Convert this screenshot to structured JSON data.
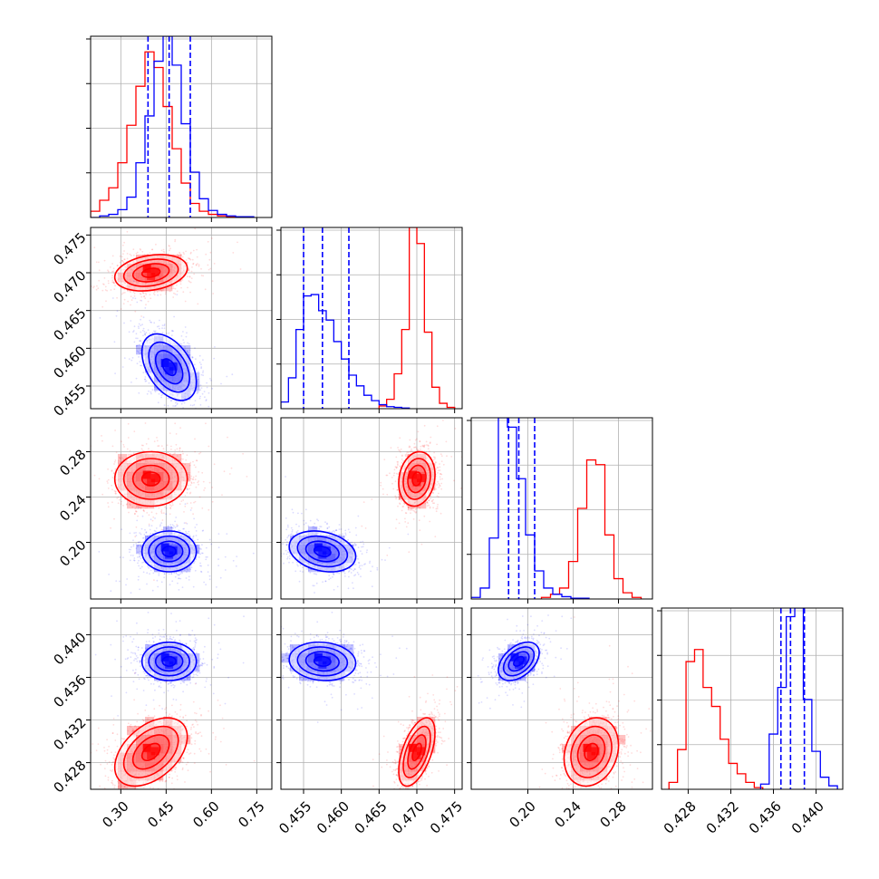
{
  "colors": {
    "series_a": "#ff0000",
    "series_b": "#0000ff"
  },
  "chart_data": {
    "type": "corner",
    "grid": true,
    "dims": [
      {
        "range": [
          0.2,
          0.8
        ],
        "ticks": [
          0.3,
          0.45,
          0.6,
          0.75
        ],
        "tick_labels": [
          "0.30",
          "0.45",
          "0.60",
          "0.75"
        ]
      },
      {
        "range": [
          0.452,
          0.476
        ],
        "ticks": [
          0.455,
          0.46,
          0.465,
          0.47,
          0.475
        ],
        "tick_labels": [
          "0.455",
          "0.460",
          "0.465",
          "0.470",
          "0.475"
        ]
      },
      {
        "range": [
          0.15,
          0.31
        ],
        "ticks": [
          0.2,
          0.24,
          0.28
        ],
        "tick_labels": [
          "0.20",
          "0.24",
          "0.28"
        ]
      },
      {
        "range": [
          0.4255,
          0.4425
        ],
        "ticks": [
          0.428,
          0.432,
          0.436,
          0.44
        ],
        "tick_labels": [
          "0.428",
          "0.432",
          "0.436",
          "0.440"
        ]
      }
    ],
    "series": [
      {
        "color": "#ff0000",
        "means": [
          0.4,
          0.47,
          0.256,
          0.429
        ],
        "sds": [
          0.06,
          0.0012,
          0.012,
          0.0016
        ],
        "hist": [
          {
            "edges": [
              0.2,
              0.23,
              0.26,
              0.29,
              0.32,
              0.35,
              0.38,
              0.41,
              0.44,
              0.47,
              0.5,
              0.53,
              0.56,
              0.59,
              0.62,
              0.65,
              0.68
            ],
            "counts": [
              8,
              22,
              38,
              70,
              118,
              168,
              212,
              192,
              142,
              88,
              44,
              18,
              8,
              4,
              2,
              1
            ]
          },
          {
            "edges": [
              0.465,
              0.466,
              0.467,
              0.468,
              0.469,
              0.47,
              0.471,
              0.472,
              0.473,
              0.474,
              0.475
            ],
            "counts": [
              4,
              14,
              52,
              118,
              270,
              246,
              114,
              32,
              8,
              2
            ]
          },
          {
            "edges": [
              0.212,
              0.22,
              0.228,
              0.236,
              0.244,
              0.252,
              0.26,
              0.268,
              0.276,
              0.284,
              0.292,
              0.3
            ],
            "counts": [
              2,
              6,
              14,
              48,
              116,
              178,
              172,
              82,
              26,
              8,
              2
            ]
          },
          {
            "edges": [
              0.4262,
              0.427,
              0.4278,
              0.4286,
              0.4294,
              0.4302,
              0.431,
              0.4318,
              0.4326,
              0.4334,
              0.4342,
              0.435
            ],
            "counts": [
              8,
              46,
              148,
              162,
              118,
              96,
              58,
              30,
              18,
              8,
              2
            ]
          }
        ]
      },
      {
        "color": "#0000ff",
        "means": [
          0.46,
          0.4575,
          0.192,
          0.4375
        ],
        "sds": [
          0.045,
          0.0022,
          0.009,
          0.0009
        ],
        "quantiles": [
          [
            0.39,
            0.46,
            0.53
          ],
          [
            0.455,
            0.4575,
            0.461
          ],
          [
            0.183,
            0.192,
            0.206
          ],
          [
            0.4367,
            0.4376,
            0.4389
          ]
        ],
        "hist": [
          {
            "edges": [
              0.2,
              0.23,
              0.26,
              0.29,
              0.32,
              0.35,
              0.38,
              0.41,
              0.44,
              0.47,
              0.5,
              0.53,
              0.56,
              0.59,
              0.62,
              0.65,
              0.68,
              0.71,
              0.74
            ],
            "counts": [
              0,
              2,
              4,
              10,
              26,
              70,
              130,
              200,
              232,
              195,
              120,
              58,
              24,
              9,
              4,
              2,
              1,
              1
            ]
          },
          {
            "edges": [
              0.452,
              0.453,
              0.454,
              0.455,
              0.456,
              0.457,
              0.458,
              0.459,
              0.46,
              0.461,
              0.462,
              0.463,
              0.464,
              0.465,
              0.466,
              0.467,
              0.468,
              0.469
            ],
            "counts": [
              10,
              46,
              118,
              168,
              170,
              146,
              132,
              100,
              74,
              50,
              34,
              20,
              12,
              6,
              3,
              2,
              1
            ]
          },
          {
            "edges": [
              0.15,
              0.158,
              0.166,
              0.174,
              0.182,
              0.19,
              0.198,
              0.206,
              0.214,
              0.222,
              0.23,
              0.238,
              0.246,
              0.254
            ],
            "counts": [
              2,
              14,
              78,
              232,
              220,
              154,
              82,
              36,
              14,
              6,
              3,
              1,
              1
            ]
          },
          {
            "edges": [
              0.4348,
              0.4356,
              0.4364,
              0.4372,
              0.438,
              0.4388,
              0.4396,
              0.4404,
              0.4412,
              0.442
            ],
            "counts": [
              6,
              64,
              118,
              200,
              210,
              104,
              44,
              14,
              4
            ]
          }
        ]
      }
    ],
    "pairs": [
      {
        "x": 0,
        "y": 1,
        "red_rho": 0.25,
        "blue_rho": -0.45
      },
      {
        "x": 0,
        "y": 2,
        "red_rho": 0.0,
        "blue_rho": 0.0
      },
      {
        "x": 1,
        "y": 2,
        "red_rho": 0.15,
        "blue_rho": -0.25
      },
      {
        "x": 0,
        "y": 3,
        "red_rho": 0.45,
        "blue_rho": 0.0
      },
      {
        "x": 1,
        "y": 3,
        "red_rho": 0.55,
        "blue_rho": -0.1
      },
      {
        "x": 2,
        "y": 3,
        "red_rho": 0.2,
        "blue_rho": 0.45
      }
    ]
  }
}
